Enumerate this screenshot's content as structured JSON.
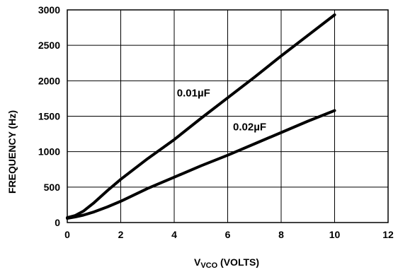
{
  "chart_data": {
    "type": "line",
    "title": "",
    "ylabel": "FREQUENCY (Hz)",
    "xlabel_main": "V",
    "xlabel_sub": "VCO",
    "xlabel_suffix": " (VOLTS)",
    "xlim": [
      0,
      12
    ],
    "ylim": [
      0,
      3000
    ],
    "x_ticks": [
      0,
      2,
      4,
      6,
      8,
      10,
      12
    ],
    "y_ticks": [
      0,
      500,
      1000,
      1500,
      2000,
      2500,
      3000
    ],
    "x_tick_labels": [
      "0",
      "2",
      "4",
      "6",
      "8",
      "10",
      "12"
    ],
    "y_tick_labels": [
      "0",
      "500",
      "1000",
      "1500",
      "2000",
      "2500",
      "3000"
    ],
    "grid": true,
    "line_color": "#000000",
    "series": [
      {
        "name": "0.01µF",
        "label": "0.01µF",
        "x": [
          0,
          0.3,
          0.6,
          1.0,
          1.5,
          2,
          3,
          4,
          5,
          6,
          7,
          8,
          9,
          10
        ],
        "y": [
          70,
          100,
          160,
          280,
          450,
          610,
          900,
          1170,
          1470,
          1760,
          2050,
          2350,
          2640,
          2930
        ]
      },
      {
        "name": "0.02µF",
        "label": "0.02µF",
        "x": [
          0,
          0.3,
          0.6,
          1.0,
          1.5,
          2,
          3,
          4,
          5,
          6,
          7,
          8,
          9,
          10
        ],
        "y": [
          60,
          80,
          105,
          150,
          220,
          300,
          480,
          640,
          800,
          950,
          1110,
          1270,
          1430,
          1580
        ]
      }
    ]
  }
}
